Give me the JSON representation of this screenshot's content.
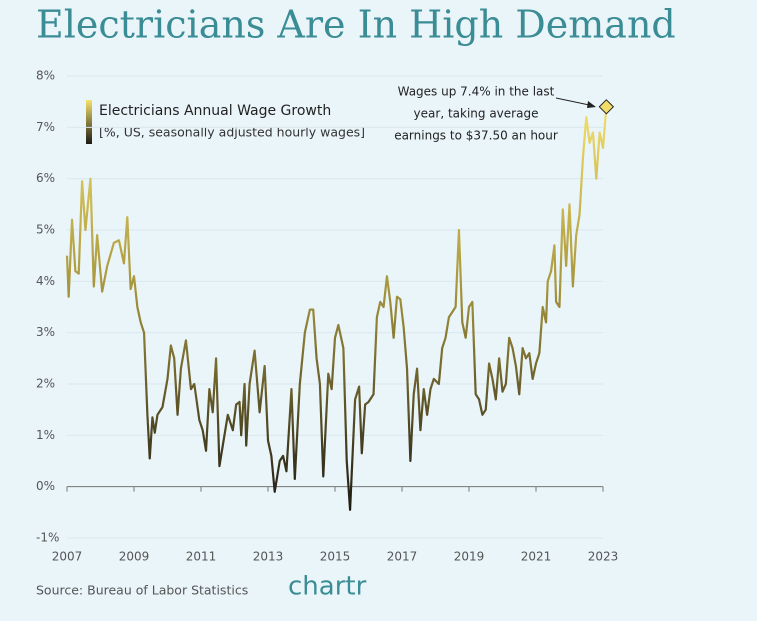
{
  "chart_data": {
    "type": "line",
    "title": "Electricians Are In High Demand",
    "legend_note": "[%, US, seasonally adjusted hourly wages]",
    "annotation": [
      "Wages up 7.4% in the last",
      "year, taking average",
      "earnings to $37.50 an hour"
    ],
    "source": "Source: Bureau of Labor Statistics",
    "logo": "chartr",
    "xlim": [
      2007,
      2023
    ],
    "xticks": [
      2007,
      2009,
      2011,
      2013,
      2015,
      2017,
      2019,
      2021,
      2023
    ],
    "ylim": [
      -1,
      8
    ],
    "yticks": [
      {
        "value": -1,
        "label": "-1%"
      },
      {
        "value": 0,
        "label": "0%"
      },
      {
        "value": 1,
        "label": "1%"
      },
      {
        "value": 2,
        "label": "2%"
      },
      {
        "value": 3,
        "label": "3%"
      },
      {
        "value": 4,
        "label": "4%"
      },
      {
        "value": 5,
        "label": "5%"
      },
      {
        "value": 6,
        "label": "6%"
      },
      {
        "value": 7,
        "label": "7%"
      },
      {
        "value": 8,
        "label": "8%"
      }
    ],
    "grid": true,
    "x": [
      2007.0,
      2007.05,
      2007.15,
      2007.25,
      2007.35,
      2007.45,
      2007.55,
      2007.7,
      2007.8,
      2007.9,
      2008.05,
      2008.2,
      2008.4,
      2008.55,
      2008.7,
      2008.8,
      2008.9,
      2009.0,
      2009.1,
      2009.2,
      2009.3,
      2009.4,
      2009.47,
      2009.55,
      2009.62,
      2009.7,
      2009.85,
      2010.0,
      2010.1,
      2010.2,
      2010.3,
      2010.4,
      2010.55,
      2010.7,
      2010.8,
      2010.95,
      2011.05,
      2011.15,
      2011.25,
      2011.35,
      2011.45,
      2011.55,
      2011.65,
      2011.8,
      2011.95,
      2012.05,
      2012.15,
      2012.2,
      2012.3,
      2012.35,
      2012.45,
      2012.6,
      2012.75,
      2012.9,
      2013.0,
      2013.1,
      2013.2,
      2013.35,
      2013.45,
      2013.55,
      2013.7,
      2013.8,
      2013.95,
      2014.1,
      2014.25,
      2014.35,
      2014.45,
      2014.55,
      2014.65,
      2014.8,
      2014.9,
      2015.0,
      2015.1,
      2015.25,
      2015.35,
      2015.45,
      2015.6,
      2015.72,
      2015.8,
      2015.9,
      2016.0,
      2016.15,
      2016.25,
      2016.35,
      2016.45,
      2016.55,
      2016.65,
      2016.75,
      2016.85,
      2016.95,
      2017.05,
      2017.15,
      2017.25,
      2017.35,
      2017.45,
      2017.55,
      2017.65,
      2017.75,
      2017.85,
      2017.95,
      2018.1,
      2018.2,
      2018.3,
      2018.4,
      2018.5,
      2018.6,
      2018.7,
      2018.8,
      2018.9,
      2019.0,
      2019.1,
      2019.2,
      2019.3,
      2019.4,
      2019.5,
      2019.6,
      2019.7,
      2019.8,
      2019.9,
      2020.0,
      2020.1,
      2020.2,
      2020.3,
      2020.4,
      2020.5,
      2020.6,
      2020.7,
      2020.8,
      2020.9,
      2021.0,
      2021.1,
      2021.2,
      2021.3,
      2021.35,
      2021.45,
      2021.55,
      2021.6,
      2021.7,
      2021.8,
      2021.9,
      2022.0,
      2022.1,
      2022.2,
      2022.3,
      2022.4,
      2022.5,
      2022.6,
      2022.7,
      2022.8,
      2022.9,
      2023.0,
      2023.1
    ],
    "series": [
      {
        "name": "Electricians Annual Wage Growth",
        "color": "#f3dd6a",
        "values": [
          4.5,
          3.7,
          5.2,
          4.2,
          4.15,
          5.95,
          5.0,
          6.0,
          3.9,
          4.9,
          3.8,
          4.3,
          4.75,
          4.8,
          4.35,
          5.25,
          3.85,
          4.1,
          3.5,
          3.2,
          3.0,
          1.4,
          0.55,
          1.35,
          1.05,
          1.4,
          1.55,
          2.1,
          2.75,
          2.5,
          1.4,
          2.3,
          2.85,
          1.9,
          2.0,
          1.3,
          1.1,
          0.7,
          1.9,
          1.45,
          2.5,
          0.4,
          0.8,
          1.4,
          1.1,
          1.6,
          1.65,
          1.0,
          2.0,
          0.8,
          2.0,
          2.65,
          1.45,
          2.35,
          0.9,
          0.6,
          -0.1,
          0.5,
          0.6,
          0.3,
          1.9,
          0.15,
          2.0,
          3.0,
          3.45,
          3.45,
          2.5,
          2.0,
          0.2,
          2.2,
          1.9,
          2.9,
          3.15,
          2.7,
          0.5,
          -0.45,
          1.7,
          1.95,
          0.65,
          1.6,
          1.65,
          1.8,
          3.3,
          3.6,
          3.5,
          4.1,
          3.6,
          2.9,
          3.7,
          3.65,
          3.1,
          2.3,
          0.5,
          1.8,
          2.3,
          1.1,
          1.9,
          1.4,
          1.9,
          2.1,
          2.0,
          2.7,
          2.9,
          3.3,
          3.4,
          3.5,
          5.0,
          3.2,
          2.9,
          3.5,
          3.6,
          1.8,
          1.7,
          1.4,
          1.5,
          2.4,
          2.1,
          1.7,
          2.5,
          1.85,
          2.0,
          2.9,
          2.7,
          2.35,
          1.8,
          2.7,
          2.5,
          2.6,
          2.1,
          2.4,
          2.6,
          3.5,
          3.2,
          4.0,
          4.2,
          4.7,
          3.6,
          3.5,
          5.4,
          4.3,
          5.5,
          3.9,
          4.9,
          5.3,
          6.4,
          7.2,
          6.7,
          6.9,
          6.0,
          6.9,
          6.6,
          7.4
        ]
      }
    ]
  }
}
